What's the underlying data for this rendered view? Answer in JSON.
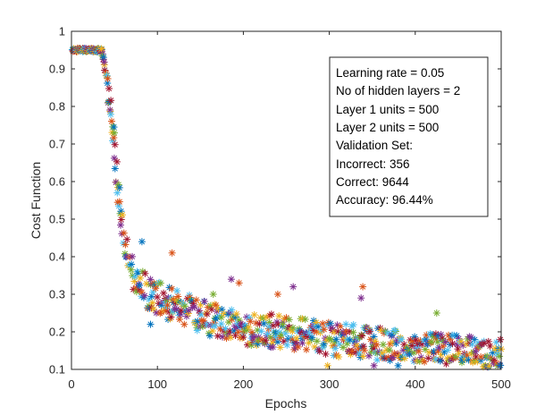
{
  "chart_data": {
    "type": "scatter",
    "title": "",
    "xlabel": "Epochs",
    "ylabel": "Cost Function",
    "xlim": [
      0,
      500
    ],
    "ylim": [
      0.1,
      1
    ],
    "xticks": [
      0,
      100,
      200,
      300,
      400,
      500
    ],
    "yticks": [
      0.1,
      0.2,
      0.3,
      0.4,
      0.5,
      0.6,
      0.7,
      0.8,
      0.9,
      1
    ],
    "ytick_labels": [
      "0.1",
      "0.2",
      "0.3",
      "0.4",
      "0.5",
      "0.6",
      "0.7",
      "0.8",
      "0.9",
      "1"
    ],
    "grid": false,
    "legend": "none",
    "marker": "*",
    "colors": [
      "#0072BD",
      "#D95319",
      "#EDB120",
      "#7E2F8E",
      "#77AC30",
      "#4DBEEE",
      "#A2142F"
    ],
    "annotation": [
      "Learning rate = 0.05",
      "No of hidden layers = 2",
      "Layer 1 units = 500",
      "Layer 2 units = 500",
      "Validation Set:",
      "Incorrect: 356",
      "Correct: 9644",
      "Accuracy: 96.44%"
    ],
    "curve": {
      "description": "cost per mini-batch vs epoch",
      "x": [
        0,
        35,
        40,
        45,
        50,
        55,
        60,
        70,
        80,
        100,
        150,
        200,
        250,
        300,
        350,
        400,
        450,
        500
      ],
      "y": [
        0.95,
        0.95,
        0.89,
        0.8,
        0.68,
        0.57,
        0.45,
        0.36,
        0.32,
        0.29,
        0.24,
        0.21,
        0.2,
        0.18,
        0.17,
        0.16,
        0.15,
        0.14
      ]
    },
    "spread": [
      0.005,
      0.005,
      0.01,
      0.04,
      0.05,
      0.05,
      0.05,
      0.045,
      0.045,
      0.045,
      0.045,
      0.045,
      0.045,
      0.045,
      0.045,
      0.04,
      0.04,
      0.04
    ],
    "outliers": [
      {
        "x": 82,
        "y": 0.44,
        "color": "#0072BD"
      },
      {
        "x": 117,
        "y": 0.41,
        "color": "#D95319"
      },
      {
        "x": 186,
        "y": 0.34,
        "color": "#7E2F8E"
      },
      {
        "x": 195,
        "y": 0.33,
        "color": "#D95319"
      },
      {
        "x": 258,
        "y": 0.32,
        "color": "#7E2F8E"
      },
      {
        "x": 339,
        "y": 0.32,
        "color": "#D95319"
      },
      {
        "x": 337,
        "y": 0.29,
        "color": "#7E2F8E"
      },
      {
        "x": 165,
        "y": 0.3,
        "color": "#77AC30"
      },
      {
        "x": 240,
        "y": 0.3,
        "color": "#D95319"
      },
      {
        "x": 425,
        "y": 0.25,
        "color": "#77AC30"
      },
      {
        "x": 92,
        "y": 0.22,
        "color": "#0072BD"
      },
      {
        "x": 298,
        "y": 0.11,
        "color": "#EDB120"
      },
      {
        "x": 352,
        "y": 0.11,
        "color": "#7E2F8E"
      },
      {
        "x": 380,
        "y": 0.11,
        "color": "#0072BD"
      }
    ]
  }
}
